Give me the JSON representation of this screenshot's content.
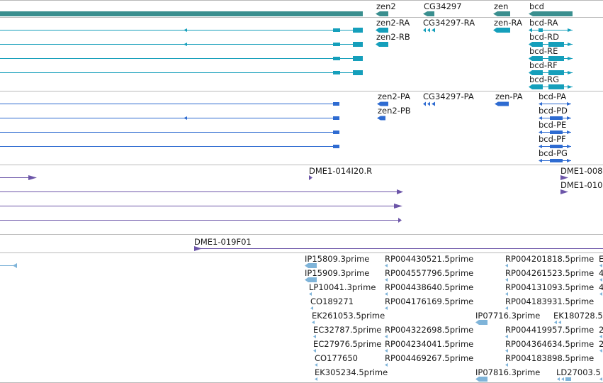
{
  "colors": {
    "gene": "#3a8f8f",
    "transcript_rna": "#159fbb",
    "transcript_protein": "#2e6bd1",
    "clone": "#6c55a8",
    "est": "#7fb4d9",
    "divider": "#b9b9b9"
  },
  "tracks": {
    "genes": {
      "labels": {
        "zen2": "zen2",
        "cg34297": "CG34297",
        "zen": "zen",
        "bcd": "bcd"
      }
    },
    "transcripts": {
      "labels": {
        "zen2_ra": "zen2-RA",
        "zen2_rb": "zen2-RB",
        "cg34297_ra": "CG34297-RA",
        "zen_ra": "zen-RA",
        "bcd_ra": "bcd-RA",
        "bcd_rd": "bcd-RD",
        "bcd_re": "bcd-RE",
        "bcd_rf": "bcd-RF",
        "bcd_rg": "bcd-RG"
      }
    },
    "proteins": {
      "labels": {
        "zen2_pa": "zen2-PA",
        "zen2_pb": "zen2-PB",
        "cg34297_pa": "CG34297-PA",
        "zen_pa": "zen-PA",
        "bcd_pa": "bcd-PA",
        "bcd_pd": "bcd-PD",
        "bcd_pe": "bcd-PE",
        "bcd_pf": "bcd-PF",
        "bcd_pg": "bcd-PG"
      }
    },
    "clones": {
      "labels": {
        "c1": "DME1-014I20.R",
        "c2": "DME1-008",
        "c3": "DME1-010",
        "c4": "DME1-019F01"
      }
    },
    "ests": {
      "labels": {
        "e01": "IP15809.3prime",
        "e02": "IP15909.3prime",
        "e03": "LP10041.3prime",
        "e04": "CO189271",
        "e05": "EK261053.5prime",
        "e06": "EC32787.5prime",
        "e07": "EC27976.5prime",
        "e08": "CO177650",
        "e09": "EK305234.5prime",
        "e10": "RP004430521.5prime",
        "e11": "RP004557796.5prime",
        "e12": "RP004438640.5prime",
        "e13": "RP004176169.5prime",
        "e14": "RP004322698.5prime",
        "e15": "RP004234041.5prime",
        "e16": "RP004469267.5prime",
        "e17": "IP07716.3prime",
        "e18": "IP07816.3prime",
        "e19": "RP004201818.5prime",
        "e20": "RP004261523.5prime",
        "e21": "RP004131093.5prime",
        "e22": "RP004183931.5prime",
        "e23": "RP004419957.5prime",
        "e24": "RP004364634.5prime",
        "e25": "RP004183898.5prime",
        "e26": "EK180728.5",
        "e27": "LD27003.5",
        "e28": "E",
        "e29": "4",
        "e30": "4",
        "e31": "2",
        "e32": "2"
      }
    }
  }
}
